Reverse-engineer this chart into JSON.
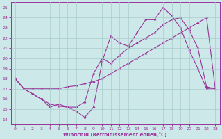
{
  "xlabel": "Windchill (Refroidissement éolien,°C)",
  "bg_color": "#cce8e8",
  "line_color": "#993399",
  "grid_color": "#aacccc",
  "xlim": [
    -0.5,
    23.5
  ],
  "ylim": [
    13.5,
    25.5
  ],
  "xticks": [
    0,
    1,
    2,
    3,
    4,
    5,
    6,
    7,
    8,
    9,
    10,
    11,
    12,
    13,
    14,
    15,
    16,
    17,
    18,
    19,
    20,
    21,
    22,
    23
  ],
  "yticks": [
    14,
    15,
    16,
    17,
    18,
    19,
    20,
    21,
    22,
    23,
    24,
    25
  ],
  "line1_x": [
    0,
    1,
    2,
    3,
    4,
    5,
    6,
    7,
    8,
    9,
    10,
    11,
    12,
    13,
    14,
    15,
    16,
    17,
    18,
    19,
    20,
    21,
    22,
    23
  ],
  "line1_y": [
    18,
    17,
    16.5,
    16,
    15.5,
    15.3,
    15.2,
    14.8,
    14.2,
    15.2,
    19.7,
    22.2,
    21.5,
    21.2,
    22.5,
    23.8,
    23.8,
    25,
    24.2,
    23,
    20.8,
    19,
    17,
    17
  ],
  "line2_x": [
    0,
    1,
    2,
    3,
    4,
    5,
    6,
    7,
    8,
    9,
    10,
    11,
    12,
    13,
    14,
    15,
    16,
    17,
    18,
    19,
    20,
    21,
    22,
    23
  ],
  "line2_y": [
    18,
    17,
    17,
    17,
    17,
    17,
    17.2,
    17.3,
    17.5,
    17.7,
    18,
    18.5,
    19,
    19.5,
    20,
    20.5,
    21,
    21.5,
    22,
    22.5,
    23,
    23.5,
    24,
    17
  ],
  "line3_x": [
    0,
    1,
    2,
    3,
    4,
    5,
    6,
    7,
    8,
    9,
    10,
    11,
    12,
    13,
    14,
    15,
    16,
    17,
    18,
    19,
    20,
    21,
    22,
    23
  ],
  "line3_y": [
    18,
    17,
    16.5,
    16,
    15.2,
    15.5,
    15.2,
    15.2,
    15.7,
    18.5,
    20,
    19.5,
    20.3,
    21,
    21.5,
    22,
    22.5,
    23.3,
    23.8,
    24,
    22.8,
    21,
    17.2,
    17
  ]
}
